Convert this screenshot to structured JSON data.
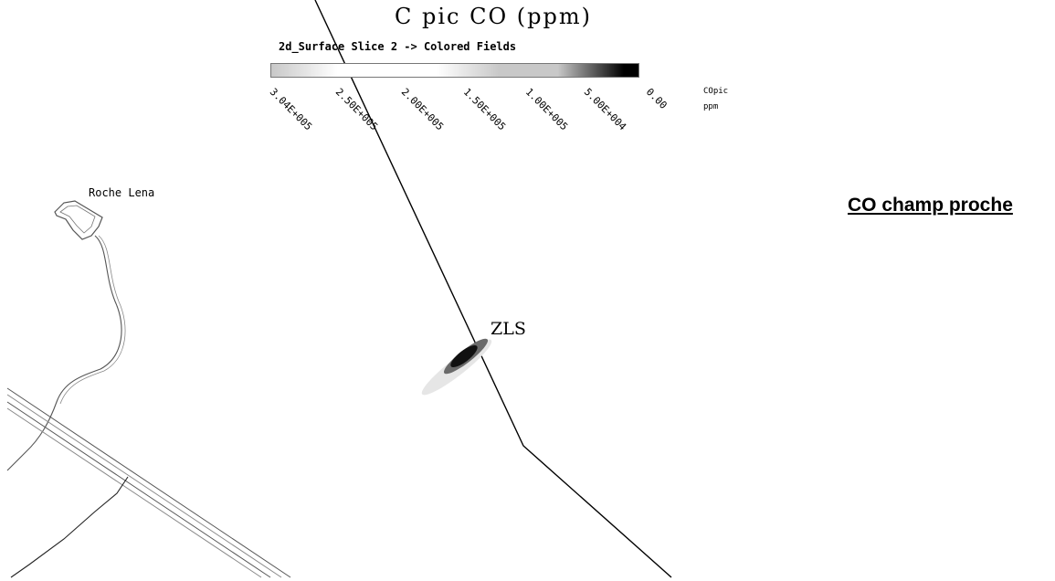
{
  "figure": {
    "title": "C pic CO (ppm)",
    "subtitle": "2d_Surface Slice 2 -> Colored Fields",
    "heading": "CO champ proche"
  },
  "colorbar": {
    "ticks": [
      "3.04E+005",
      "2.50E+005",
      "2.00E+005",
      "1.50E+005",
      "1.00E+005",
      "5.00E+004",
      "0.00"
    ],
    "unit_line1": "COpic",
    "unit_line2": "ppm",
    "colors": {
      "high": "#ffffff",
      "mid": "#c8c8c8",
      "low": "#000000"
    }
  },
  "labels": {
    "roche_lena": "Roche Lena",
    "zls": "ZLS"
  }
}
